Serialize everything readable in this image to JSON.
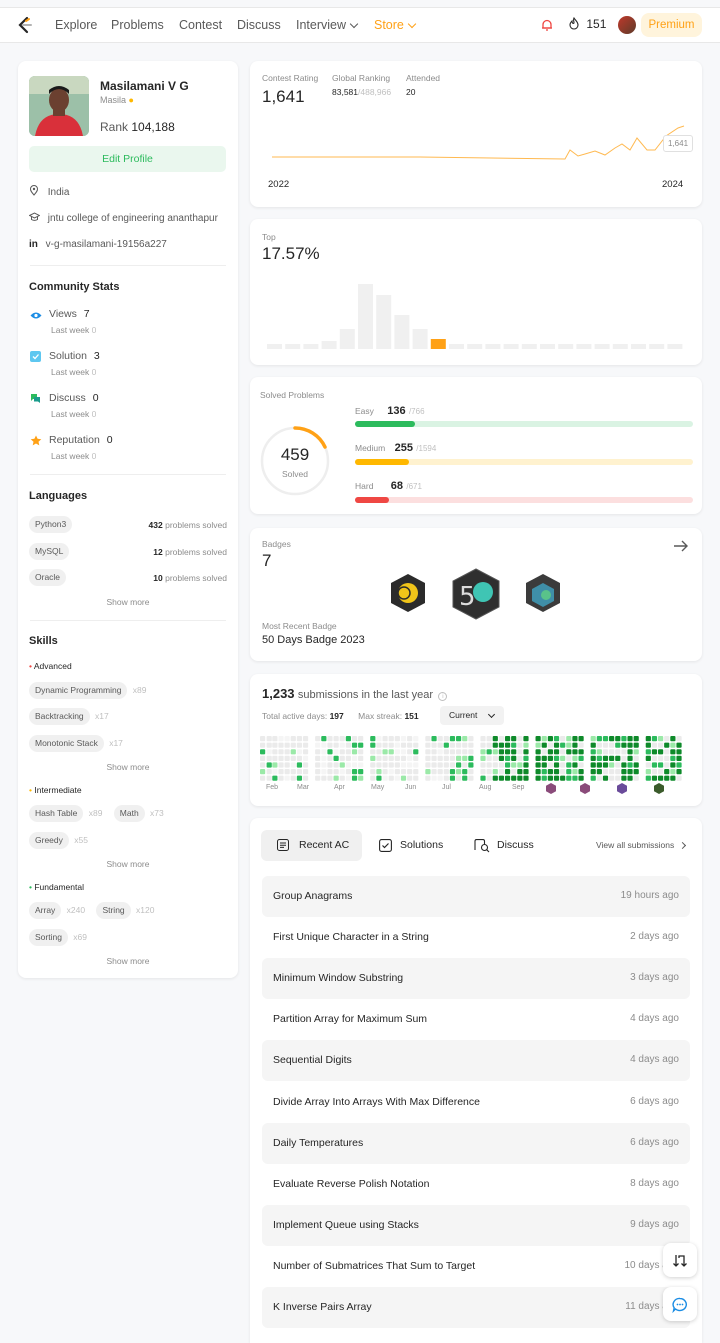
{
  "nav": {
    "items": [
      "Explore",
      "Problems",
      "Contest",
      "Discuss",
      "Interview",
      "Store"
    ],
    "streak": "151",
    "premium": "Premium"
  },
  "profile": {
    "name": "Masilamani V G",
    "username": "Masila",
    "rank_label": "Rank",
    "rank": "104,188",
    "edit": "Edit Profile",
    "location": "India",
    "school": "jntu college of engineering ananthapur",
    "linkedin": "v-g-masilamani-19156a227"
  },
  "community": {
    "title": "Community Stats",
    "last_week": "Last week",
    "items": [
      {
        "label": "Views",
        "value": "7",
        "delta": "0"
      },
      {
        "label": "Solution",
        "value": "3",
        "delta": "0"
      },
      {
        "label": "Discuss",
        "value": "0",
        "delta": "0"
      },
      {
        "label": "Reputation",
        "value": "0",
        "delta": "0"
      }
    ]
  },
  "languages": {
    "title": "Languages",
    "unit": "problems solved",
    "items": [
      {
        "name": "Python3",
        "count": "432"
      },
      {
        "name": "MySQL",
        "count": "12"
      },
      {
        "name": "Oracle",
        "count": "10"
      }
    ],
    "show_more": "Show more"
  },
  "skills": {
    "title": "Skills",
    "show_more": "Show more",
    "advanced": {
      "label": "Advanced",
      "tags": [
        {
          "name": "Dynamic Programming",
          "count": "x89"
        },
        {
          "name": "Backtracking",
          "count": "x17"
        },
        {
          "name": "Monotonic Stack",
          "count": "x17"
        }
      ]
    },
    "intermediate": {
      "label": "Intermediate",
      "tags": [
        {
          "name": "Hash Table",
          "count": "x89"
        },
        {
          "name": "Math",
          "count": "x73"
        },
        {
          "name": "Greedy",
          "count": "x55"
        }
      ]
    },
    "fundamental": {
      "label": "Fundamental",
      "tags": [
        {
          "name": "Array",
          "count": "x240"
        },
        {
          "name": "String",
          "count": "x120"
        },
        {
          "name": "Sorting",
          "count": "x69"
        }
      ]
    }
  },
  "contest": {
    "rating_label": "Contest Rating",
    "rating": "1,641",
    "global_label": "Global Ranking",
    "global": "83,581",
    "global_total": "/488,966",
    "attended_label": "Attended",
    "attended": "20",
    "x_start": "2022",
    "x_end": "2024",
    "tooltip": "1,641"
  },
  "top": {
    "label": "Top",
    "value": "17.57%"
  },
  "solved": {
    "title": "Solved Problems",
    "total": "459",
    "solved_label": "Solved",
    "easy": {
      "label": "Easy",
      "value": "136",
      "total": "/766",
      "fraction": 0.178,
      "color": "#2cbb5d"
    },
    "medium": {
      "label": "Medium",
      "value": "255",
      "total": "/1594",
      "fraction": 0.16,
      "color": "#ffb800"
    },
    "hard": {
      "label": "Hard",
      "value": "68",
      "total": "/671",
      "fraction": 0.101,
      "color": "#ef4743"
    }
  },
  "badges": {
    "label": "Badges",
    "count": "7",
    "recent_label": "Most Recent Badge",
    "recent": "50 Days Badge 2023"
  },
  "submissions": {
    "count": "1,233",
    "text": "submissions in the last year",
    "active_label": "Total active days:",
    "active": "197",
    "streak_label": "Max streak:",
    "streak": "151",
    "select": "Current",
    "months": [
      "Feb",
      "Mar",
      "Apr",
      "May",
      "Jun",
      "Jul",
      "Aug",
      "Sep"
    ]
  },
  "recent": {
    "tabs": [
      "Recent AC",
      "Solutions",
      "Discuss"
    ],
    "view_all": "View all submissions",
    "items": [
      {
        "title": "Group Anagrams",
        "time": "19 hours ago"
      },
      {
        "title": "First Unique Character in a String",
        "time": "2 days ago"
      },
      {
        "title": "Minimum Window Substring",
        "time": "3 days ago"
      },
      {
        "title": "Partition Array for Maximum Sum",
        "time": "4 days ago"
      },
      {
        "title": "Sequential Digits",
        "time": "4 days ago"
      },
      {
        "title": "Divide Array Into Arrays With Max Difference",
        "time": "6 days ago"
      },
      {
        "title": "Daily Temperatures",
        "time": "6 days ago"
      },
      {
        "title": "Evaluate Reverse Polish Notation",
        "time": "8 days ago"
      },
      {
        "title": "Implement Queue using Stacks",
        "time": "9 days ago"
      },
      {
        "title": "Number of Submatrices That Sum to Target",
        "time": "10 days ago"
      },
      {
        "title": "K Inverse Pairs Array",
        "time": "11 days ago"
      }
    ]
  }
}
